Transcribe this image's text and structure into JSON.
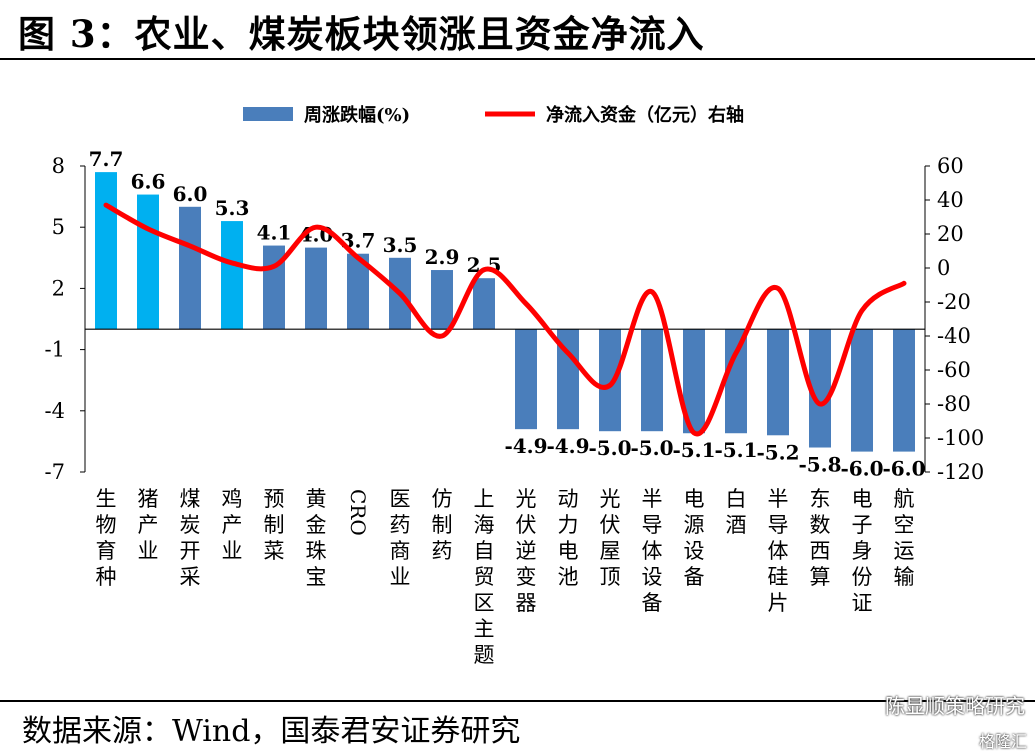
{
  "title": "图 3：农业、煤炭板块领涨且资金净流入",
  "source": "数据来源：Wind，国泰君安证券研究",
  "watermark": "陈显顺策略研究",
  "watermark2": "格隆汇",
  "colors": {
    "bar": "#4a7ebb",
    "bar_highlight": "#00b0f0",
    "line": "#ff0000"
  },
  "chart_data": {
    "type": "bar",
    "legend_placement": "top",
    "categories": [
      "生物育种",
      "猪产业",
      "煤炭开采",
      "鸡产业",
      "预制菜",
      "黄金珠宝",
      "CRO",
      "医药商业",
      "仿制药",
      "上海自贸区主题",
      "光伏逆变器",
      "动力电池",
      "光伏屋顶",
      "半导体设备",
      "电源设备",
      "白酒",
      "半导体硅片",
      "东数西算",
      "电子身份证",
      "航空运输"
    ],
    "series": [
      {
        "name": "周涨跌幅(%)",
        "type": "bar",
        "axis": "left",
        "values": [
          7.7,
          6.6,
          6.0,
          5.3,
          4.1,
          4.0,
          3.7,
          3.5,
          2.9,
          2.5,
          -4.9,
          -4.9,
          -5.0,
          -5.0,
          -5.1,
          -5.1,
          -5.2,
          -5.8,
          -6.0,
          -6.0
        ],
        "labels": [
          "7.7",
          "6.6",
          "6.0",
          "5.3",
          "4.1",
          "4.0",
          "3.7",
          "3.5",
          "2.9",
          "2.5",
          "-4.9",
          "-4.9",
          "-5.0",
          "-5.0",
          "-5.1",
          "-5.1",
          "-5.2",
          "-5.8",
          "-6.0",
          "-6.0"
        ],
        "highlight": [
          true,
          true,
          false,
          true,
          false,
          false,
          false,
          false,
          false,
          false,
          false,
          false,
          false,
          false,
          false,
          false,
          false,
          false,
          false,
          false
        ]
      },
      {
        "name": "净流入资金（亿元）右轴",
        "type": "line",
        "axis": "right",
        "values": [
          37,
          23,
          13,
          3,
          1,
          24,
          6,
          -15,
          -40,
          -1,
          -21,
          -50,
          -69,
          -14,
          -97,
          -50,
          -12,
          -80,
          -25,
          -9
        ]
      }
    ],
    "ylim_left": [
      -7,
      8
    ],
    "yticks_left": [
      8,
      5,
      2,
      -1,
      -4,
      -7
    ],
    "ylim_right": [
      -120,
      60
    ],
    "yticks_right": [
      60,
      40,
      20,
      0,
      -20,
      -40,
      -60,
      -80,
      -100,
      -120
    ],
    "grid": false
  }
}
